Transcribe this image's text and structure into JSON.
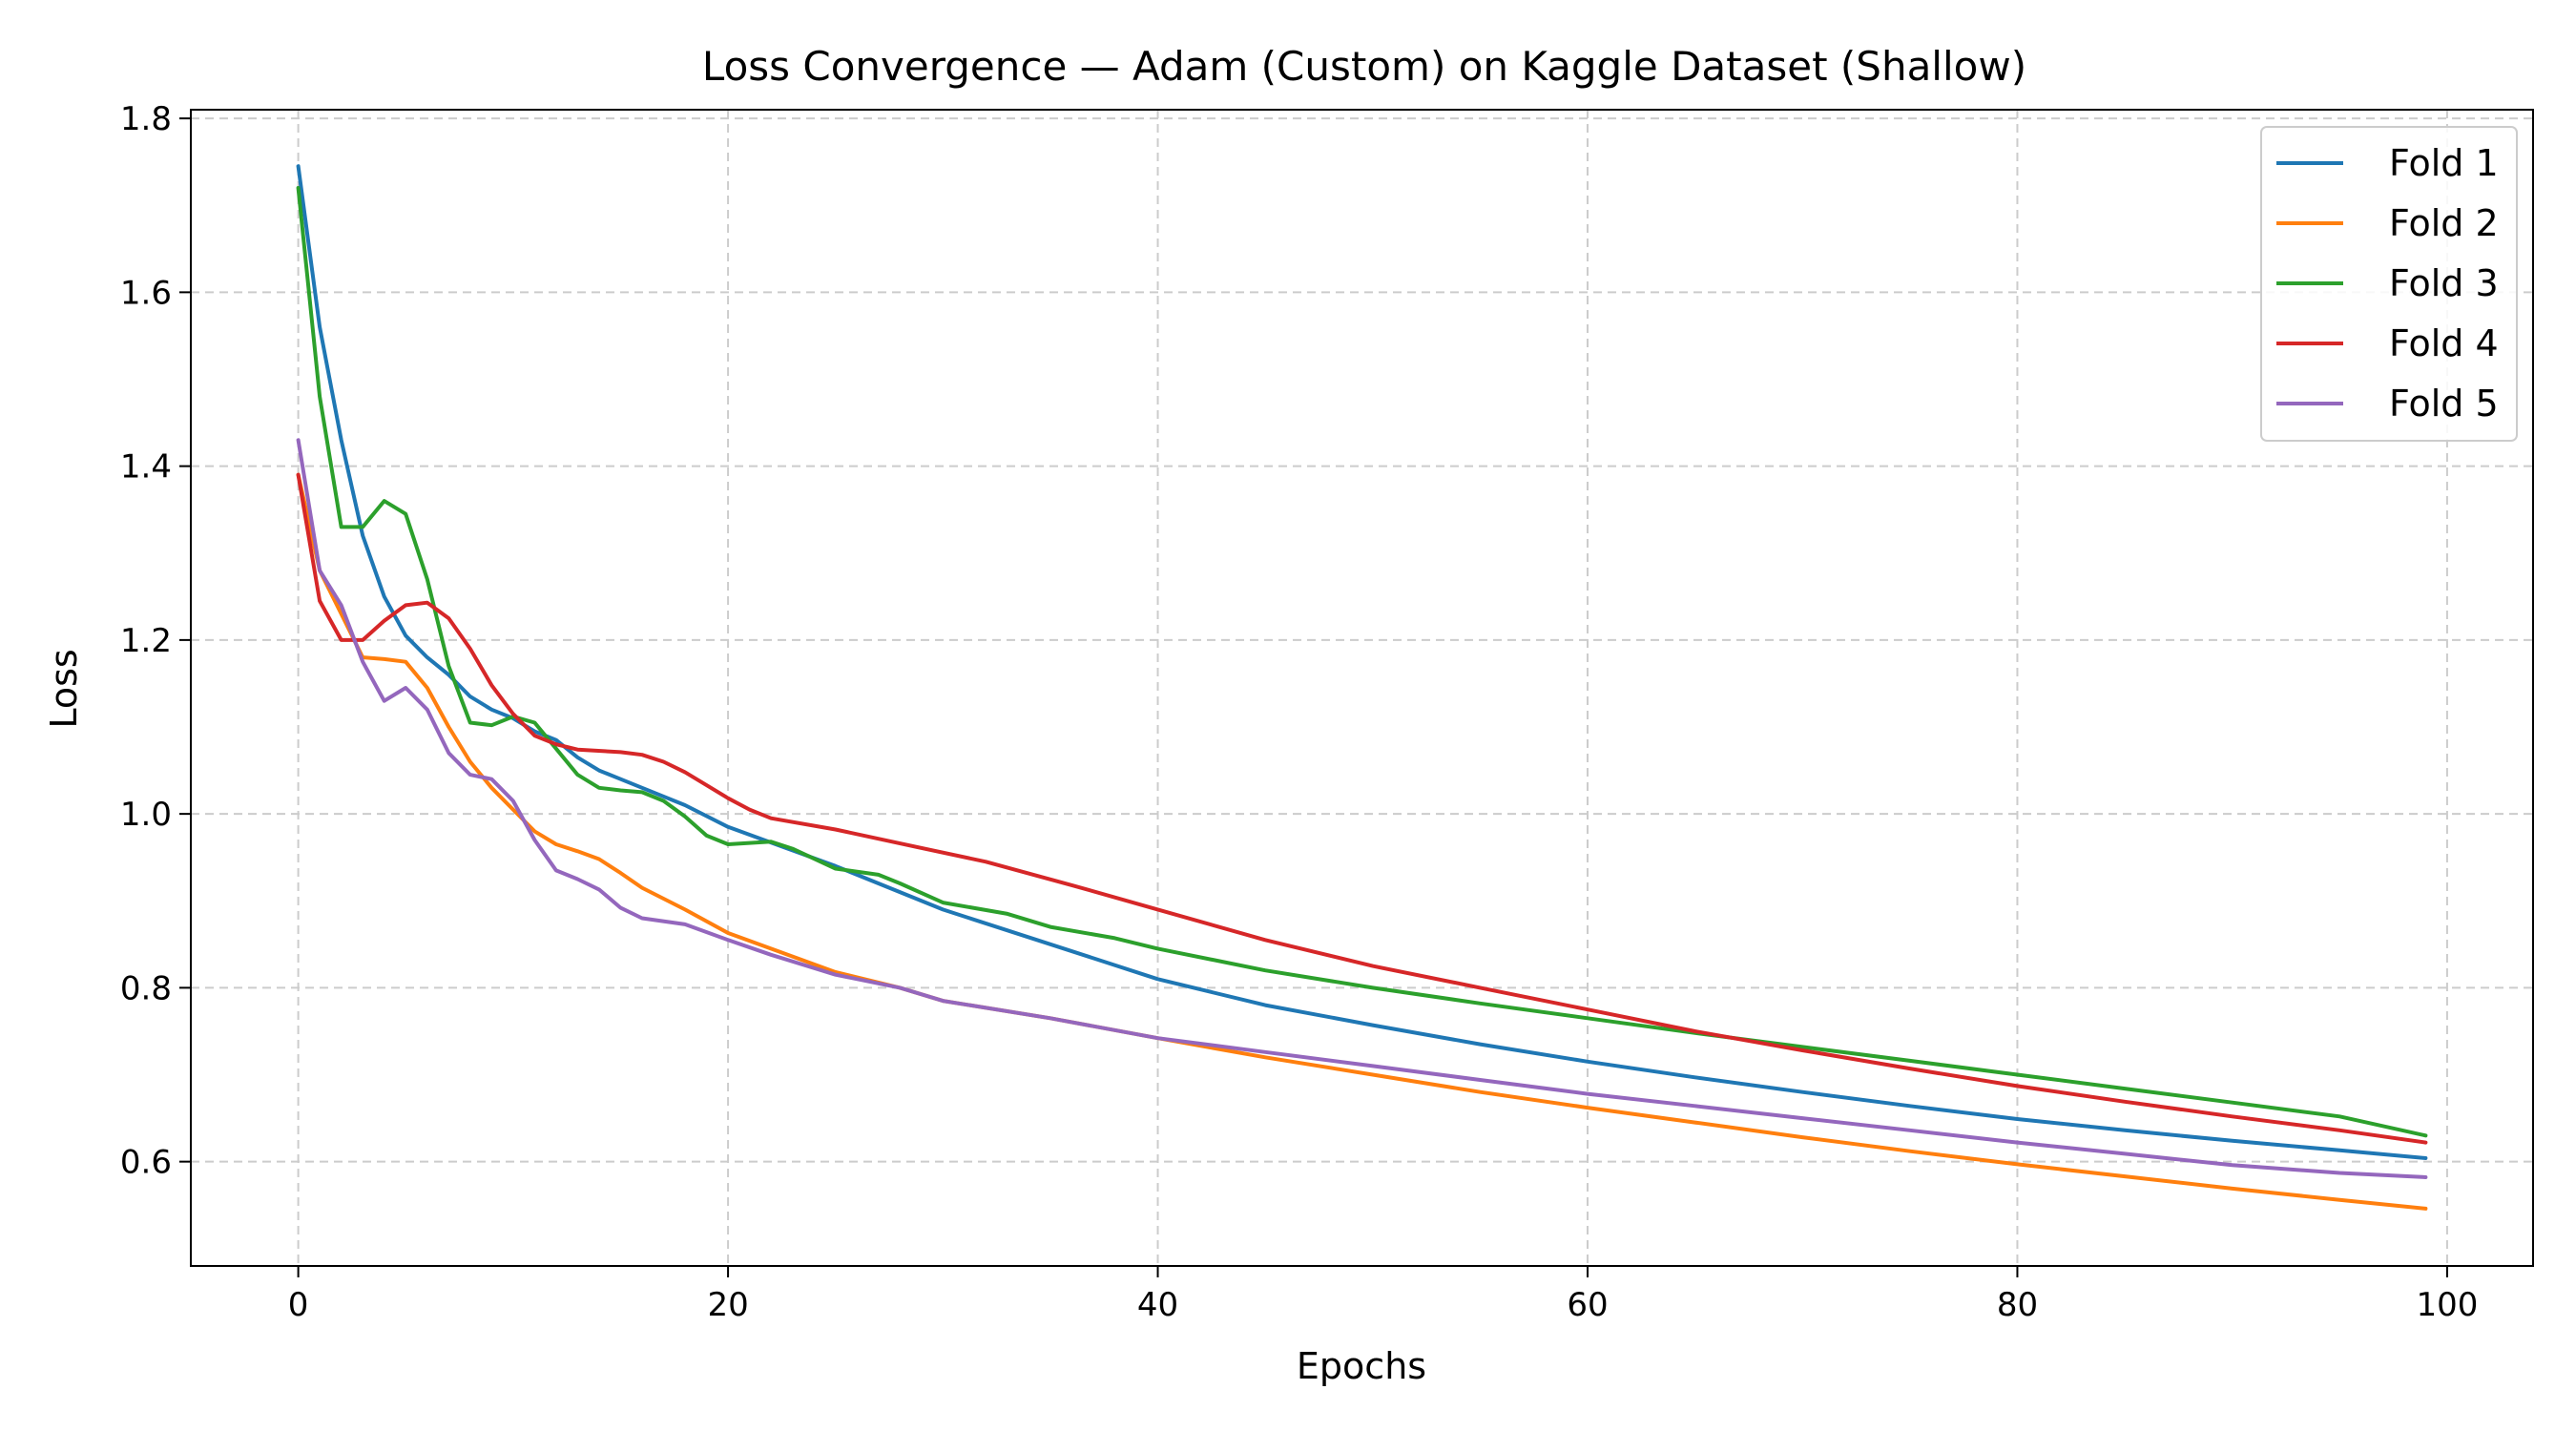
{
  "chart_data": {
    "type": "line",
    "title": "Loss Convergence — Adam (Custom) on Kaggle Dataset (Shallow)",
    "xlabel": "Epochs",
    "ylabel": "Loss",
    "xlim": [
      -5,
      104
    ],
    "ylim": [
      0.48,
      1.81
    ],
    "xticks": [
      0,
      20,
      40,
      60,
      80,
      100
    ],
    "yticks": [
      0.6,
      0.8,
      1.0,
      1.2,
      1.4,
      1.6,
      1.8
    ],
    "grid": true,
    "legend_position": "top-right",
    "series": [
      {
        "name": "Fold 1",
        "color": "#1f77b4",
        "points": [
          [
            0,
            1.745
          ],
          [
            1,
            1.56
          ],
          [
            2,
            1.43
          ],
          [
            3,
            1.32
          ],
          [
            4,
            1.25
          ],
          [
            5,
            1.205
          ],
          [
            6,
            1.18
          ],
          [
            7,
            1.16
          ],
          [
            8,
            1.135
          ],
          [
            9,
            1.12
          ],
          [
            10,
            1.11
          ],
          [
            11,
            1.095
          ],
          [
            12,
            1.085
          ],
          [
            13,
            1.065
          ],
          [
            14,
            1.05
          ],
          [
            15,
            1.04
          ],
          [
            16,
            1.03
          ],
          [
            18,
            1.01
          ],
          [
            20,
            0.985
          ],
          [
            25,
            0.94
          ],
          [
            30,
            0.89
          ],
          [
            35,
            0.85
          ],
          [
            40,
            0.81
          ],
          [
            45,
            0.78
          ],
          [
            50,
            0.757
          ],
          [
            55,
            0.735
          ],
          [
            60,
            0.715
          ],
          [
            65,
            0.697
          ],
          [
            70,
            0.68
          ],
          [
            75,
            0.664
          ],
          [
            80,
            0.649
          ],
          [
            85,
            0.636
          ],
          [
            90,
            0.624
          ],
          [
            95,
            0.613
          ],
          [
            99,
            0.604
          ]
        ]
      },
      {
        "name": "Fold 2",
        "color": "#ff7f0e",
        "points": [
          [
            0,
            1.39
          ],
          [
            1,
            1.28
          ],
          [
            2,
            1.23
          ],
          [
            3,
            1.18
          ],
          [
            4,
            1.178
          ],
          [
            5,
            1.175
          ],
          [
            6,
            1.145
          ],
          [
            7,
            1.1
          ],
          [
            8,
            1.06
          ],
          [
            9,
            1.03
          ],
          [
            10,
            1.005
          ],
          [
            11,
            0.98
          ],
          [
            12,
            0.965
          ],
          [
            13,
            0.957
          ],
          [
            14,
            0.948
          ],
          [
            15,
            0.932
          ],
          [
            16,
            0.915
          ],
          [
            18,
            0.89
          ],
          [
            20,
            0.863
          ],
          [
            22,
            0.845
          ],
          [
            25,
            0.818
          ],
          [
            28,
            0.8
          ],
          [
            30,
            0.785
          ],
          [
            35,
            0.765
          ],
          [
            40,
            0.742
          ],
          [
            45,
            0.72
          ],
          [
            50,
            0.7
          ],
          [
            55,
            0.68
          ],
          [
            60,
            0.662
          ],
          [
            65,
            0.645
          ],
          [
            70,
            0.628
          ],
          [
            75,
            0.612
          ],
          [
            80,
            0.597
          ],
          [
            85,
            0.583
          ],
          [
            90,
            0.569
          ],
          [
            95,
            0.556
          ],
          [
            99,
            0.546
          ]
        ]
      },
      {
        "name": "Fold 3",
        "color": "#2ca02c",
        "points": [
          [
            0,
            1.72
          ],
          [
            1,
            1.48
          ],
          [
            2,
            1.33
          ],
          [
            3,
            1.33
          ],
          [
            4,
            1.36
          ],
          [
            5,
            1.345
          ],
          [
            6,
            1.27
          ],
          [
            7,
            1.17
          ],
          [
            8,
            1.105
          ],
          [
            9,
            1.102
          ],
          [
            10,
            1.112
          ],
          [
            11,
            1.105
          ],
          [
            12,
            1.075
          ],
          [
            13,
            1.045
          ],
          [
            14,
            1.03
          ],
          [
            15,
            1.027
          ],
          [
            16,
            1.025
          ],
          [
            17,
            1.015
          ],
          [
            18,
            0.997
          ],
          [
            19,
            0.975
          ],
          [
            20,
            0.965
          ],
          [
            22,
            0.968
          ],
          [
            23,
            0.96
          ],
          [
            25,
            0.937
          ],
          [
            27,
            0.93
          ],
          [
            28,
            0.92
          ],
          [
            30,
            0.898
          ],
          [
            33,
            0.885
          ],
          [
            35,
            0.87
          ],
          [
            38,
            0.857
          ],
          [
            40,
            0.845
          ],
          [
            45,
            0.82
          ],
          [
            50,
            0.8
          ],
          [
            55,
            0.782
          ],
          [
            60,
            0.765
          ],
          [
            65,
            0.748
          ],
          [
            70,
            0.732
          ],
          [
            75,
            0.716
          ],
          [
            80,
            0.7
          ],
          [
            85,
            0.684
          ],
          [
            90,
            0.668
          ],
          [
            95,
            0.652
          ],
          [
            99,
            0.63
          ]
        ]
      },
      {
        "name": "Fold 4",
        "color": "#d62728",
        "points": [
          [
            0,
            1.39
          ],
          [
            1,
            1.245
          ],
          [
            2,
            1.2
          ],
          [
            3,
            1.2
          ],
          [
            4,
            1.222
          ],
          [
            5,
            1.24
          ],
          [
            6,
            1.243
          ],
          [
            7,
            1.225
          ],
          [
            8,
            1.19
          ],
          [
            9,
            1.148
          ],
          [
            10,
            1.115
          ],
          [
            11,
            1.09
          ],
          [
            12,
            1.08
          ],
          [
            13,
            1.074
          ],
          [
            15,
            1.071
          ],
          [
            16,
            1.068
          ],
          [
            17,
            1.06
          ],
          [
            18,
            1.048
          ],
          [
            19,
            1.033
          ],
          [
            20,
            1.018
          ],
          [
            21,
            1.005
          ],
          [
            22,
            0.995
          ],
          [
            25,
            0.982
          ],
          [
            28,
            0.966
          ],
          [
            32,
            0.945
          ],
          [
            36,
            0.918
          ],
          [
            40,
            0.89
          ],
          [
            45,
            0.855
          ],
          [
            50,
            0.825
          ],
          [
            55,
            0.8
          ],
          [
            60,
            0.775
          ],
          [
            65,
            0.75
          ],
          [
            70,
            0.728
          ],
          [
            75,
            0.707
          ],
          [
            80,
            0.687
          ],
          [
            85,
            0.669
          ],
          [
            90,
            0.652
          ],
          [
            95,
            0.636
          ],
          [
            99,
            0.622
          ]
        ]
      },
      {
        "name": "Fold 5",
        "color": "#9467bd",
        "points": [
          [
            0,
            1.43
          ],
          [
            1,
            1.28
          ],
          [
            2,
            1.24
          ],
          [
            3,
            1.175
          ],
          [
            4,
            1.13
          ],
          [
            5,
            1.145
          ],
          [
            6,
            1.12
          ],
          [
            7,
            1.07
          ],
          [
            8,
            1.045
          ],
          [
            9,
            1.04
          ],
          [
            10,
            1.015
          ],
          [
            11,
            0.97
          ],
          [
            12,
            0.935
          ],
          [
            13,
            0.925
          ],
          [
            14,
            0.913
          ],
          [
            15,
            0.892
          ],
          [
            16,
            0.88
          ],
          [
            18,
            0.873
          ],
          [
            20,
            0.855
          ],
          [
            22,
            0.838
          ],
          [
            25,
            0.815
          ],
          [
            28,
            0.8
          ],
          [
            30,
            0.785
          ],
          [
            35,
            0.765
          ],
          [
            40,
            0.742
          ],
          [
            45,
            0.726
          ],
          [
            50,
            0.71
          ],
          [
            55,
            0.694
          ],
          [
            60,
            0.678
          ],
          [
            65,
            0.664
          ],
          [
            70,
            0.65
          ],
          [
            75,
            0.636
          ],
          [
            80,
            0.622
          ],
          [
            85,
            0.609
          ],
          [
            90,
            0.596
          ],
          [
            95,
            0.587
          ],
          [
            99,
            0.582
          ]
        ]
      }
    ]
  }
}
